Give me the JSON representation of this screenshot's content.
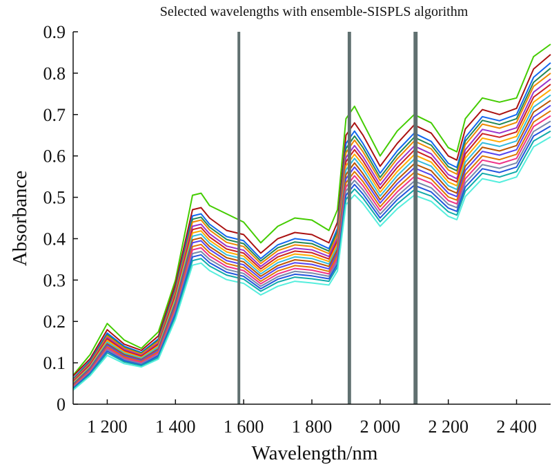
{
  "chart_data": {
    "type": "line",
    "title": "Selected wavelengths with ensemble-SISPLS algorithm",
    "xlabel": "Wavelength/nm",
    "ylabel": "Absorbance",
    "xlim": [
      1100,
      2500
    ],
    "ylim": [
      0,
      0.9
    ],
    "x_ticks": [
      1200,
      1400,
      1600,
      1800,
      2000,
      2200,
      2400
    ],
    "x_tick_labels": [
      "1 200",
      "1 400",
      "1 600",
      "1 800",
      "2 000",
      "2 200",
      "2 400"
    ],
    "y_ticks": [
      0,
      0.1,
      0.2,
      0.3,
      0.4,
      0.5,
      0.6,
      0.7,
      0.8,
      0.9
    ],
    "y_tick_labels": [
      "0",
      "0.1",
      "0.2",
      "0.3",
      "0.4",
      "0.5",
      "0.6",
      "0.7",
      "0.8",
      "0.9"
    ],
    "grid": false,
    "x": [
      1100,
      1150,
      1200,
      1250,
      1300,
      1350,
      1400,
      1450,
      1475,
      1500,
      1550,
      1600,
      1650,
      1700,
      1750,
      1800,
      1850,
      1875,
      1900,
      1925,
      1950,
      2000,
      2050,
      2100,
      2150,
      2200,
      2225,
      2250,
      2300,
      2350,
      2400,
      2450,
      2500
    ],
    "series": [
      {
        "values": [
          0.07,
          0.12,
          0.195,
          0.155,
          0.135,
          0.175,
          0.3,
          0.505,
          0.51,
          0.48,
          0.46,
          0.44,
          0.39,
          0.43,
          0.45,
          0.445,
          0.42,
          0.47,
          0.69,
          0.72,
          0.68,
          0.6,
          0.66,
          0.7,
          0.68,
          0.62,
          0.61,
          0.69,
          0.74,
          0.73,
          0.74,
          0.84,
          0.87
        ],
        "color": "#44cc00"
      },
      {
        "values": [
          0.068,
          0.11,
          0.18,
          0.145,
          0.13,
          0.165,
          0.29,
          0.47,
          0.475,
          0.45,
          0.42,
          0.41,
          0.365,
          0.4,
          0.415,
          0.41,
          0.39,
          0.44,
          0.65,
          0.68,
          0.65,
          0.575,
          0.63,
          0.675,
          0.655,
          0.6,
          0.59,
          0.665,
          0.712,
          0.7,
          0.715,
          0.81,
          0.845
        ],
        "color": "#aa1111"
      },
      {
        "values": [
          0.062,
          0.105,
          0.172,
          0.14,
          0.125,
          0.158,
          0.28,
          0.455,
          0.46,
          0.435,
          0.405,
          0.395,
          0.352,
          0.385,
          0.4,
          0.395,
          0.376,
          0.425,
          0.63,
          0.66,
          0.63,
          0.558,
          0.612,
          0.655,
          0.635,
          0.582,
          0.572,
          0.645,
          0.695,
          0.685,
          0.7,
          0.79,
          0.825
        ],
        "color": "#1166ee"
      },
      {
        "values": [
          0.06,
          0.102,
          0.168,
          0.137,
          0.123,
          0.155,
          0.276,
          0.447,
          0.452,
          0.428,
          0.398,
          0.388,
          0.346,
          0.378,
          0.392,
          0.388,
          0.37,
          0.418,
          0.618,
          0.648,
          0.62,
          0.548,
          0.602,
          0.645,
          0.626,
          0.574,
          0.564,
          0.636,
          0.686,
          0.676,
          0.69,
          0.778,
          0.812
        ],
        "color": "#228855"
      },
      {
        "values": [
          0.058,
          0.1,
          0.165,
          0.135,
          0.121,
          0.152,
          0.272,
          0.44,
          0.445,
          0.421,
          0.391,
          0.381,
          0.34,
          0.371,
          0.385,
          0.381,
          0.364,
          0.411,
          0.608,
          0.638,
          0.61,
          0.54,
          0.593,
          0.636,
          0.617,
          0.566,
          0.556,
          0.627,
          0.677,
          0.667,
          0.681,
          0.768,
          0.8
        ],
        "color": "#ee8800"
      },
      {
        "values": [
          0.056,
          0.097,
          0.161,
          0.132,
          0.118,
          0.148,
          0.266,
          0.43,
          0.435,
          0.412,
          0.382,
          0.372,
          0.333,
          0.363,
          0.377,
          0.373,
          0.357,
          0.402,
          0.596,
          0.625,
          0.598,
          0.53,
          0.582,
          0.624,
          0.605,
          0.555,
          0.545,
          0.615,
          0.664,
          0.655,
          0.668,
          0.754,
          0.786
        ],
        "color": "#9933cc"
      },
      {
        "values": [
          0.054,
          0.095,
          0.158,
          0.129,
          0.116,
          0.145,
          0.262,
          0.422,
          0.427,
          0.404,
          0.375,
          0.365,
          0.327,
          0.356,
          0.37,
          0.366,
          0.351,
          0.395,
          0.586,
          0.615,
          0.588,
          0.521,
          0.572,
          0.614,
          0.595,
          0.546,
          0.537,
          0.605,
          0.654,
          0.645,
          0.658,
          0.742,
          0.773
        ],
        "color": "#cc2222"
      },
      {
        "values": [
          0.052,
          0.092,
          0.154,
          0.126,
          0.113,
          0.141,
          0.256,
          0.414,
          0.419,
          0.396,
          0.368,
          0.358,
          0.321,
          0.349,
          0.363,
          0.359,
          0.345,
          0.388,
          0.576,
          0.604,
          0.578,
          0.512,
          0.562,
          0.603,
          0.585,
          0.537,
          0.528,
          0.595,
          0.643,
          0.634,
          0.647,
          0.73,
          0.76
        ],
        "color": "#ffaa00"
      },
      {
        "values": [
          0.05,
          0.09,
          0.15,
          0.123,
          0.111,
          0.138,
          0.251,
          0.406,
          0.411,
          0.389,
          0.361,
          0.351,
          0.315,
          0.342,
          0.356,
          0.352,
          0.339,
          0.381,
          0.566,
          0.594,
          0.568,
          0.503,
          0.552,
          0.592,
          0.575,
          0.528,
          0.519,
          0.585,
          0.632,
          0.623,
          0.636,
          0.718,
          0.747
        ],
        "color": "#33bbdd"
      },
      {
        "values": [
          0.048,
          0.087,
          0.146,
          0.12,
          0.108,
          0.134,
          0.245,
          0.397,
          0.402,
          0.381,
          0.354,
          0.344,
          0.309,
          0.335,
          0.349,
          0.345,
          0.333,
          0.374,
          0.555,
          0.583,
          0.557,
          0.494,
          0.542,
          0.581,
          0.564,
          0.519,
          0.51,
          0.575,
          0.621,
          0.612,
          0.625,
          0.706,
          0.734
        ],
        "color": "#bb5500"
      },
      {
        "values": [
          0.046,
          0.085,
          0.143,
          0.117,
          0.106,
          0.131,
          0.24,
          0.39,
          0.395,
          0.374,
          0.347,
          0.337,
          0.303,
          0.329,
          0.342,
          0.338,
          0.327,
          0.367,
          0.545,
          0.573,
          0.548,
          0.486,
          0.533,
          0.571,
          0.554,
          0.51,
          0.502,
          0.565,
          0.611,
          0.602,
          0.615,
          0.694,
          0.722
        ],
        "color": "#5544ee"
      },
      {
        "values": [
          0.044,
          0.082,
          0.139,
          0.114,
          0.103,
          0.127,
          0.234,
          0.381,
          0.386,
          0.366,
          0.34,
          0.33,
          0.297,
          0.322,
          0.335,
          0.331,
          0.321,
          0.36,
          0.535,
          0.562,
          0.538,
          0.477,
          0.523,
          0.56,
          0.544,
          0.501,
          0.493,
          0.555,
          0.6,
          0.591,
          0.604,
          0.682,
          0.709
        ],
        "color": "#dd7700"
      },
      {
        "values": [
          0.042,
          0.08,
          0.136,
          0.111,
          0.101,
          0.124,
          0.229,
          0.373,
          0.378,
          0.358,
          0.333,
          0.323,
          0.291,
          0.315,
          0.328,
          0.324,
          0.315,
          0.353,
          0.525,
          0.552,
          0.528,
          0.468,
          0.513,
          0.55,
          0.534,
          0.492,
          0.484,
          0.545,
          0.59,
          0.581,
          0.594,
          0.671,
          0.697
        ],
        "color": "#ee3388"
      },
      {
        "values": [
          0.04,
          0.077,
          0.132,
          0.108,
          0.098,
          0.12,
          0.223,
          0.364,
          0.369,
          0.35,
          0.326,
          0.316,
          0.285,
          0.308,
          0.321,
          0.317,
          0.309,
          0.346,
          0.515,
          0.541,
          0.518,
          0.459,
          0.503,
          0.539,
          0.523,
          0.483,
          0.475,
          0.535,
          0.579,
          0.57,
          0.583,
          0.659,
          0.684
        ],
        "color": "#7788aa"
      },
      {
        "values": [
          0.038,
          0.075,
          0.128,
          0.105,
          0.095,
          0.117,
          0.218,
          0.356,
          0.361,
          0.342,
          0.319,
          0.309,
          0.279,
          0.302,
          0.314,
          0.31,
          0.303,
          0.339,
          0.505,
          0.531,
          0.508,
          0.45,
          0.494,
          0.529,
          0.513,
          0.474,
          0.466,
          0.525,
          0.569,
          0.56,
          0.573,
          0.648,
          0.672
        ],
        "color": "#2255dd"
      },
      {
        "values": [
          0.036,
          0.072,
          0.124,
          0.102,
          0.093,
          0.113,
          0.212,
          0.347,
          0.352,
          0.334,
          0.312,
          0.302,
          0.273,
          0.295,
          0.307,
          0.303,
          0.297,
          0.332,
          0.495,
          0.52,
          0.498,
          0.441,
          0.484,
          0.518,
          0.503,
          0.465,
          0.457,
          0.515,
          0.558,
          0.549,
          0.562,
          0.636,
          0.66
        ],
        "color": "#11aaaa"
      },
      {
        "values": [
          0.034,
          0.069,
          0.118,
          0.098,
          0.09,
          0.109,
          0.205,
          0.336,
          0.341,
          0.323,
          0.301,
          0.292,
          0.264,
          0.285,
          0.297,
          0.293,
          0.288,
          0.322,
          0.482,
          0.506,
          0.485,
          0.43,
          0.472,
          0.505,
          0.49,
          0.454,
          0.446,
          0.502,
          0.545,
          0.536,
          0.549,
          0.622,
          0.646
        ],
        "color": "#55eedd"
      }
    ],
    "selected_bands": [
      {
        "x": [
          1582,
          1590
        ]
      },
      {
        "x": [
          1905,
          1915
        ]
      },
      {
        "x": [
          2098,
          2110
        ]
      }
    ],
    "band_color": "#607070"
  }
}
